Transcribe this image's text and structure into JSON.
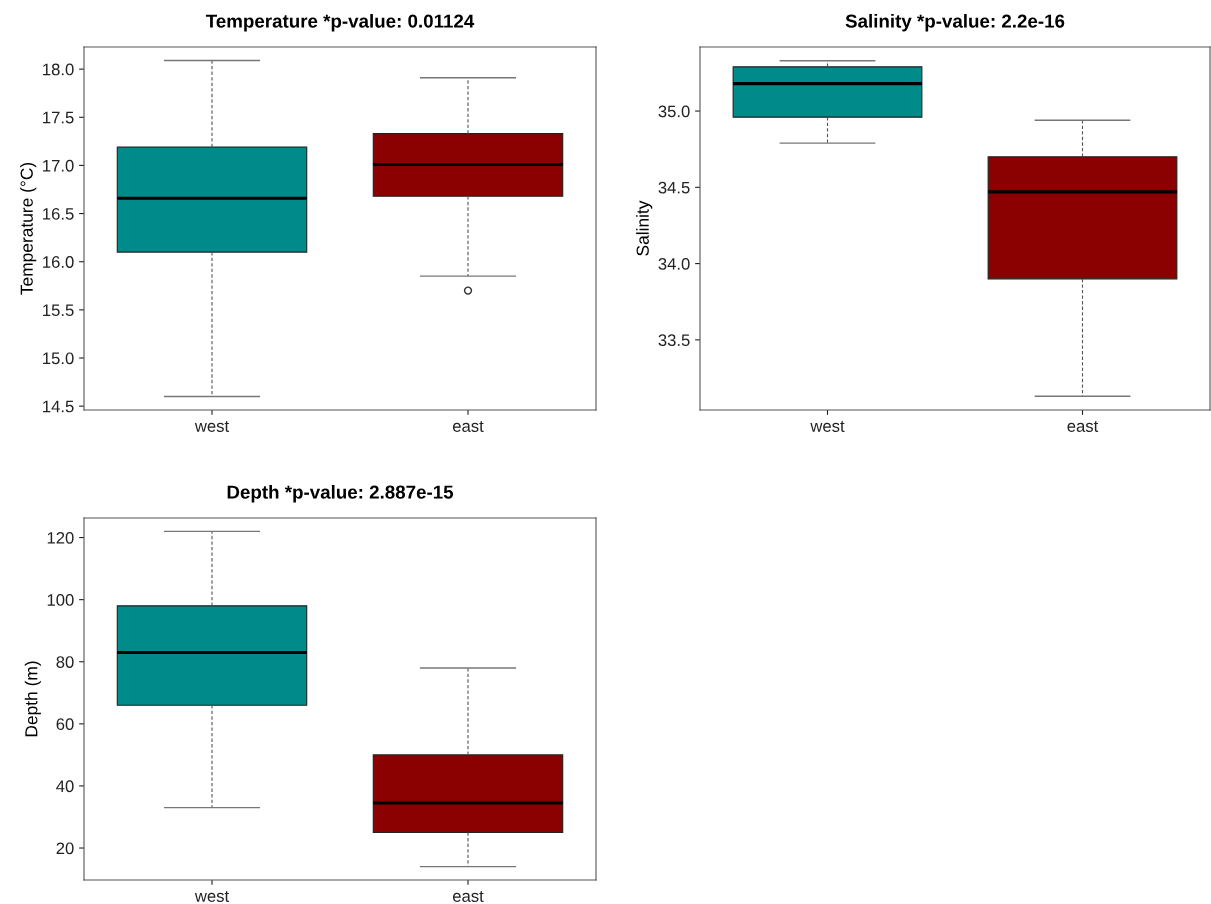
{
  "chart_data": [
    {
      "type": "box",
      "title": "Temperature *p-value: 0.01124",
      "ylabel": "Temperature (°C)",
      "categories": [
        "west",
        "east"
      ],
      "colors": [
        "#008b8b",
        "#8b0000"
      ],
      "boxes": [
        {
          "low": 14.6,
          "q1": 16.1,
          "median": 16.66,
          "q3": 17.19,
          "high": 18.09
        },
        {
          "low": 15.85,
          "q1": 16.68,
          "median": 17.01,
          "q3": 17.33,
          "high": 17.91,
          "outliers": [
            15.7
          ]
        }
      ],
      "ylim": [
        14.46,
        18.23
      ],
      "yticks": [
        14.5,
        {
          "value": 15,
          "label": "15.0"
        },
        15.5,
        {
          "value": 16,
          "label": "16.0"
        },
        16.5,
        {
          "value": 17,
          "label": "17.0"
        },
        17.5,
        {
          "value": 18,
          "label": "18.0"
        }
      ],
      "grid": false
    },
    {
      "type": "box",
      "title": "Salinity *p-value: 2.2e-16",
      "ylabel": "Salinity",
      "categories": [
        "west",
        "east"
      ],
      "colors": [
        "#008b8b",
        "#8b0000"
      ],
      "boxes": [
        {
          "low": 34.79,
          "q1": 34.96,
          "median": 35.18,
          "q3": 35.29,
          "high": 35.33
        },
        {
          "low": 33.13,
          "q1": 33.9,
          "median": 34.47,
          "q3": 34.7,
          "high": 34.94
        }
      ],
      "ylim": [
        33.04,
        35.42
      ],
      "yticks": [
        33.5,
        {
          "value": 34,
          "label": "34.0"
        },
        34.5,
        {
          "value": 35,
          "label": "35.0"
        }
      ],
      "grid": false
    },
    {
      "type": "box",
      "title": "Depth *p-value: 2.887e-15",
      "ylabel": "Depth (m)",
      "categories": [
        "west",
        "east"
      ],
      "colors": [
        "#008b8b",
        "#8b0000"
      ],
      "boxes": [
        {
          "low": 33,
          "q1": 66,
          "median": 83,
          "q3": 98,
          "high": 122
        },
        {
          "low": 14,
          "q1": 25,
          "median": 34.5,
          "q3": 50,
          "high": 78
        }
      ],
      "ylim": [
        9.7,
        126.3
      ],
      "yticks": [
        20,
        40,
        60,
        80,
        100,
        120
      ],
      "grid": false
    }
  ]
}
